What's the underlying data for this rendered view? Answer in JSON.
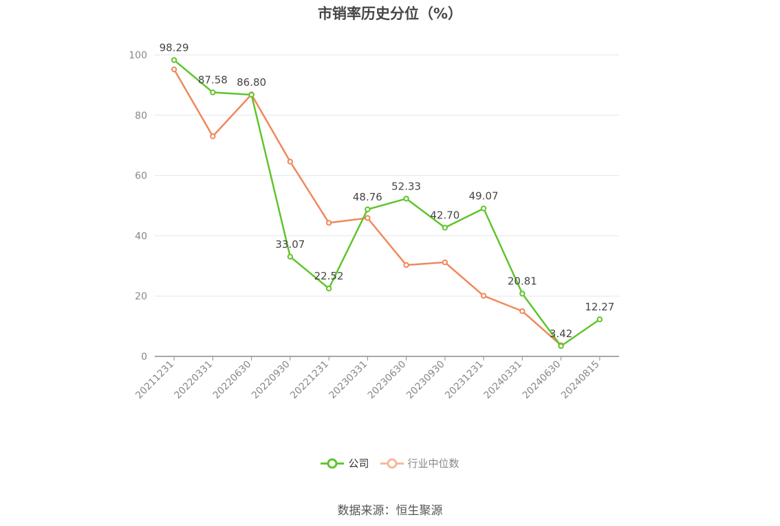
{
  "chart_data": {
    "type": "line",
    "title": "市销率历史分位（%）",
    "categories": [
      "20211231",
      "20220331",
      "20220630",
      "20220930",
      "20221231",
      "20230331",
      "20230630",
      "20230930",
      "20231231",
      "20240331",
      "20240630",
      "20240815"
    ],
    "series": [
      {
        "name": "公司",
        "color": "#5ec42a",
        "values": [
          98.29,
          87.58,
          86.8,
          33.07,
          22.52,
          48.76,
          52.33,
          42.7,
          49.07,
          20.81,
          3.42,
          12.27
        ],
        "labels": [
          "98.29",
          "87.58",
          "86.80",
          "33.07",
          "22.52",
          "48.76",
          "52.33",
          "42.70",
          "49.07",
          "20.81",
          "3.42",
          "12.27"
        ]
      },
      {
        "name": "行业中位数",
        "color": "#f0875a",
        "values": [
          95.2,
          73.0,
          86.9,
          64.6,
          44.3,
          45.9,
          30.3,
          31.2,
          20.1,
          15.0,
          3.7,
          null
        ]
      }
    ],
    "ylim": [
      0,
      100
    ],
    "yticks": [
      "0",
      "20",
      "40",
      "60",
      "80",
      "100"
    ],
    "grid": true,
    "legend_position": "bottom"
  },
  "source": "数据来源：恒生聚源"
}
